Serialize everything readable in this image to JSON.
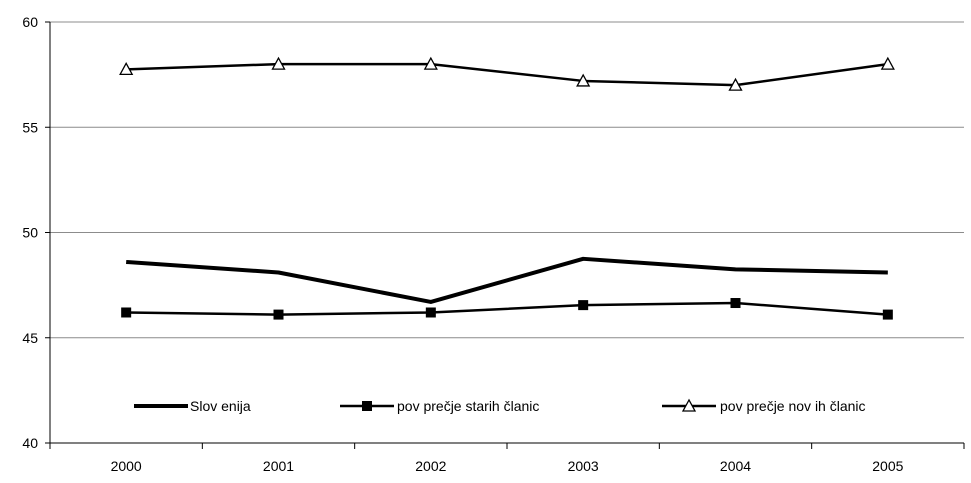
{
  "chart_data": {
    "type": "line",
    "title": "",
    "xlabel": "",
    "ylabel": "",
    "categories": [
      "2000",
      "2001",
      "2002",
      "2003",
      "2004",
      "2005"
    ],
    "ylim": [
      40,
      60
    ],
    "yticks": [
      40,
      45,
      50,
      55,
      60
    ],
    "grid": "horizontal",
    "legend_position": "bottom-inside",
    "series": [
      {
        "name": "Slov enija",
        "values": [
          48.6,
          48.1,
          46.7,
          48.75,
          48.25,
          48.1
        ],
        "marker": "none",
        "line_width": "thick",
        "color": "#000000"
      },
      {
        "name": "pov prečje starih članic",
        "values": [
          46.2,
          46.1,
          46.2,
          46.55,
          46.65,
          46.1
        ],
        "marker": "square",
        "line_width": "normal",
        "color": "#000000"
      },
      {
        "name": "pov prečje nov ih članic",
        "values": [
          57.75,
          58.0,
          58.0,
          57.2,
          57.0,
          58.0
        ],
        "marker": "triangle",
        "line_width": "normal",
        "color": "#000000"
      }
    ]
  }
}
